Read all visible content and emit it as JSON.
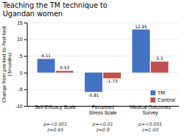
{
  "chart_data": {
    "type": "bar",
    "title": "Teaching the TM technique to\nUgandan women",
    "categories": [
      "Self-Efficacy Scale",
      "Perceived\nStress Scale",
      "Medical Outcomes\nSurvey"
    ],
    "series": [
      {
        "name": "TM",
        "color": "#4472C4",
        "values": [
          4.11,
          -5.81,
          12.95
        ]
      },
      {
        "name": "Control",
        "color": "#C0504D",
        "values": [
          0.53,
          -1.73,
          3.3
        ]
      }
    ],
    "ylabel": "Change from pre-test to Post-test\n(3months)",
    "ylim": [
      -10,
      15
    ],
    "yticks": [
      -10,
      -5,
      0,
      5,
      10,
      15
    ],
    "grid": true,
    "legend": "lower right",
    "data_labels": true,
    "annotations": [
      "p=<0.001\nz=0.65",
      "p=<0.01\nz=0.8",
      "p=<0.001\nz=1.00"
    ]
  }
}
